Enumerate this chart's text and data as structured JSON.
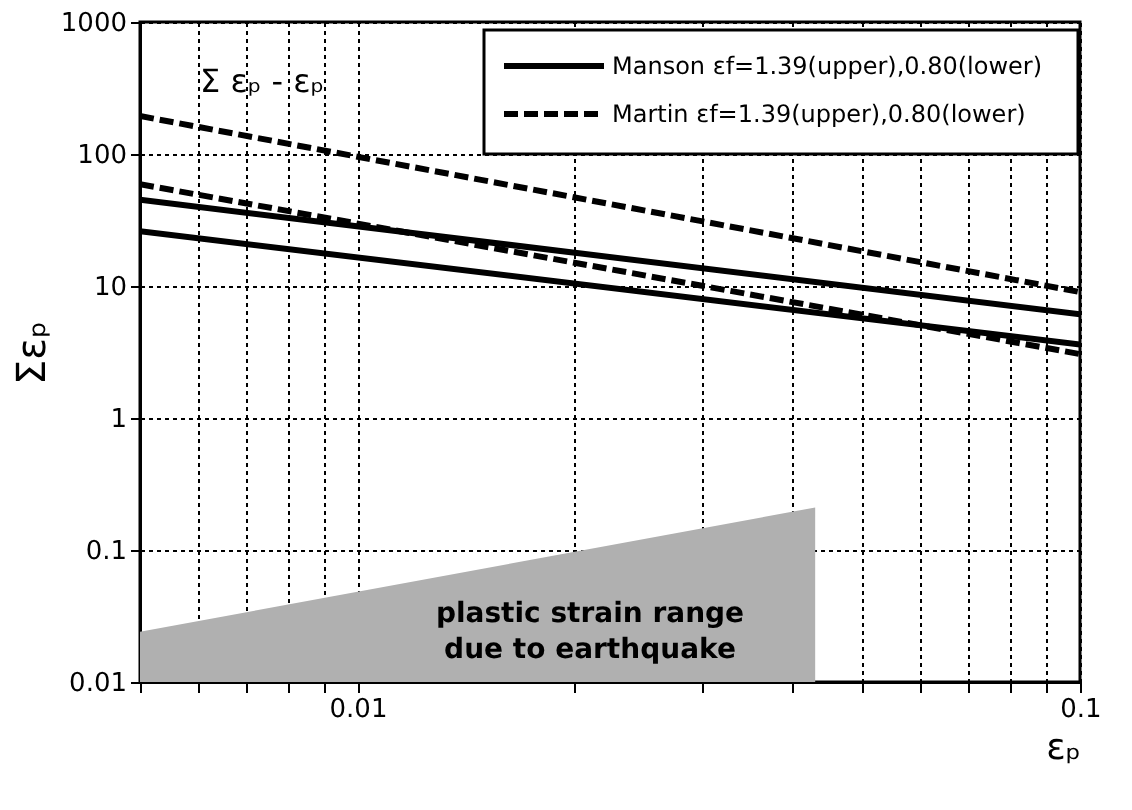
{
  "chart_data": {
    "type": "line",
    "xlabel": "εₚ",
    "ylabel": "Σεₚ",
    "xlim": [
      0.005,
      0.1
    ],
    "ylim": [
      0.01,
      1000
    ],
    "log": "xy",
    "grid": true,
    "legend": "top right",
    "xticks": [
      {
        "value": 0.005,
        "label": null
      },
      {
        "value": 0.006,
        "label": null
      },
      {
        "value": 0.007,
        "label": null
      },
      {
        "value": 0.008,
        "label": null
      },
      {
        "value": 0.009,
        "label": null
      },
      0.01,
      {
        "value": 0.02,
        "label": null
      },
      {
        "value": 0.03,
        "label": null
      },
      {
        "value": 0.04,
        "label": null
      },
      {
        "value": 0.05,
        "label": null
      },
      {
        "value": 0.06,
        "label": null
      },
      {
        "value": 0.07,
        "label": null
      },
      {
        "value": 0.08,
        "label": null
      },
      {
        "value": 0.09,
        "label": null
      },
      0.1
    ],
    "yticks": [
      0.01,
      0.1,
      1,
      10,
      100,
      1000
    ],
    "series": [
      {
        "type": "area",
        "color": "#b0b0b0",
        "x": [
          0.005,
          0.043
        ],
        "values": [
          0.024,
          0.21
        ]
      },
      {
        "name": "Manson εf=1.39(upper),0.80(lower)",
        "color": "#000000",
        "line_style": "solid",
        "x": [
          0.005,
          0.1
        ],
        "values": [
          45,
          6.1
        ]
      },
      {
        "color": "#000000",
        "line_style": "solid",
        "x": [
          0.005,
          0.1
        ],
        "values": [
          26,
          3.6
        ]
      },
      {
        "name": "Martin εf=1.39(upper),0.80(lower)",
        "color": "#000000",
        "line_style": "dashed",
        "x": [
          0.005,
          0.1
        ],
        "values": [
          194,
          9.0
        ]
      },
      {
        "color": "#000000",
        "line_style": "dashed",
        "x": [
          0.005,
          0.1
        ],
        "values": [
          59,
          3.05
        ]
      }
    ],
    "annotations": [
      "Σ εₚ - εₚ",
      "plastic strain range\ndue to earthquake"
    ]
  }
}
